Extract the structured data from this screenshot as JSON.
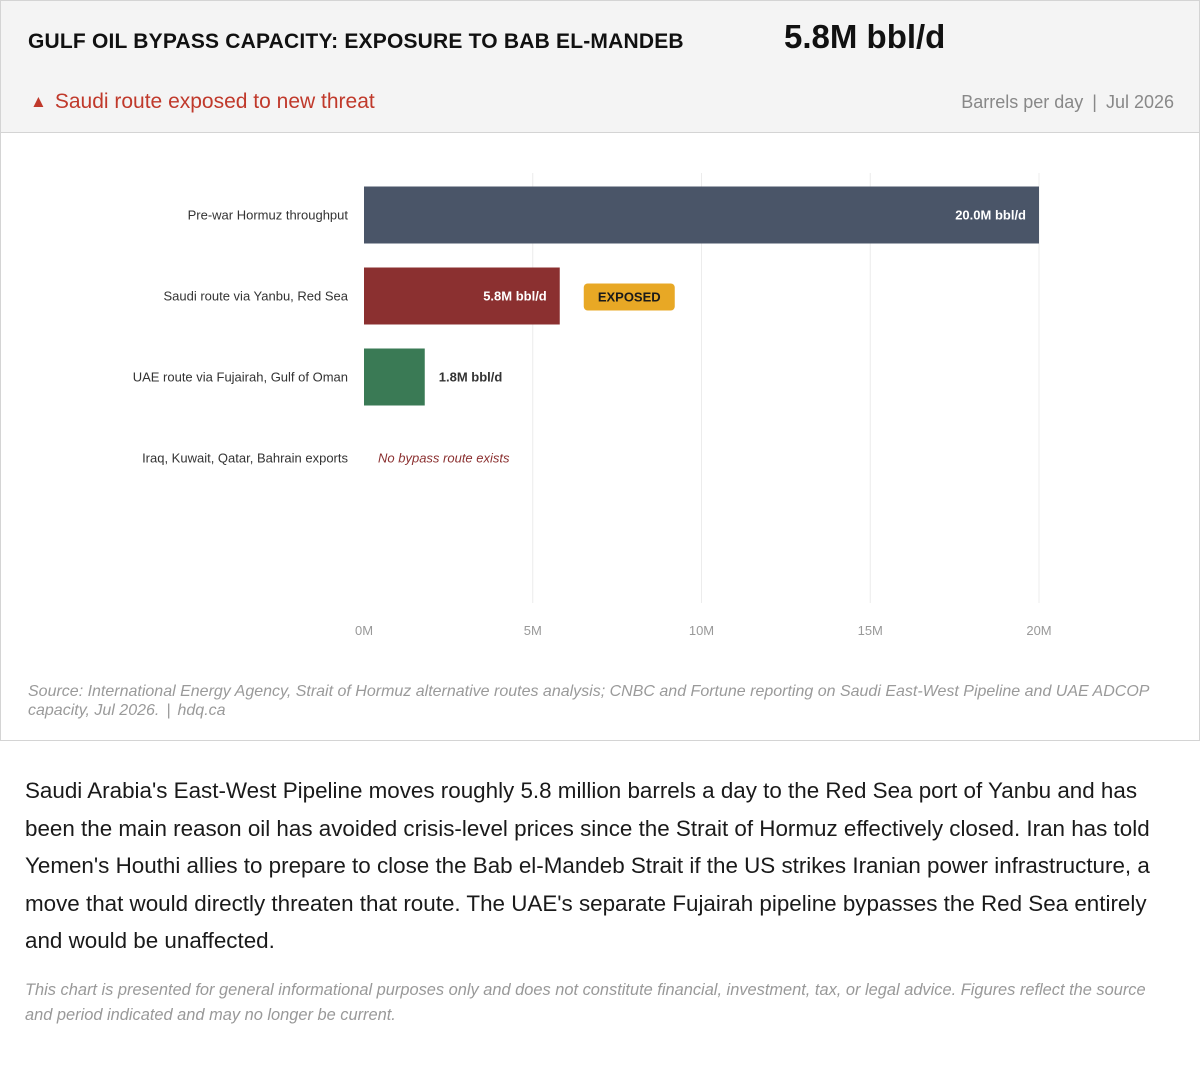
{
  "header": {
    "title": "GULF OIL BYPASS CAPACITY: EXPOSURE TO BAB EL-MANDEB",
    "headline_value": "5.8M bbl/d",
    "alert_icon": "triangle-up-icon",
    "alert_glyph": "▲",
    "alert_text": "Saudi route exposed to new threat",
    "unit_label": "Barrels per day",
    "separator": "|",
    "date": "Jul 2026"
  },
  "chart_data": {
    "type": "bar",
    "orientation": "horizontal",
    "categories": [
      "Pre-war Hormuz throughput",
      "Saudi route via Yanbu, Red Sea",
      "UAE route via Fujairah, Gulf of Oman",
      "Iraq, Kuwait, Qatar, Bahrain exports"
    ],
    "values": [
      20.0,
      5.8,
      1.8,
      null
    ],
    "value_labels": [
      "20.0M bbl/d",
      "5.8M bbl/d",
      "1.8M bbl/d",
      ""
    ],
    "colors": [
      "#4a5568",
      "#8b3030",
      "#3a7a55",
      null
    ],
    "label_colors": [
      "#ffffff",
      "#ffffff",
      "#333333",
      null
    ],
    "label_inside": [
      true,
      true,
      false,
      false
    ],
    "badges": [
      null,
      "EXPOSED",
      null,
      null
    ],
    "badge_color": "#e8a825",
    "no_data_note": "No bypass route exists",
    "no_data_color": "#8b3030",
    "xlim": [
      0,
      20
    ],
    "xticks": [
      0,
      5,
      10,
      15,
      20
    ],
    "xtick_labels": [
      "0M",
      "5M",
      "10M",
      "15M",
      "20M"
    ],
    "grid": true,
    "legend": "none",
    "title": "",
    "xlabel": "",
    "ylabel": ""
  },
  "source": {
    "text": "Source: International Energy Agency, Strait of Hormuz alternative routes analysis; CNBC and Fortune reporting on Saudi East-West Pipeline and UAE ADCOP capacity, Jul 2026.",
    "separator": "|",
    "site": "hdq.ca"
  },
  "article": {
    "paragraph": "Saudi Arabia's East-West Pipeline moves roughly 5.8 million barrels a day to the Red Sea port of Yanbu and has been the main reason oil has avoided crisis-level prices since the Strait of Hormuz effectively closed. Iran has told Yemen's Houthi allies to prepare to close the Bab el-Mandeb Strait if the US strikes Iranian power infrastructure, a move that would directly threaten that route. The UAE's separate Fujairah pipeline bypasses the Red Sea entirely and would be unaffected."
  },
  "disclaimer": "This chart is presented for general informational purposes only and does not constitute financial, investment, tax, or legal advice. Figures reflect the source and period indicated and may no longer be current."
}
